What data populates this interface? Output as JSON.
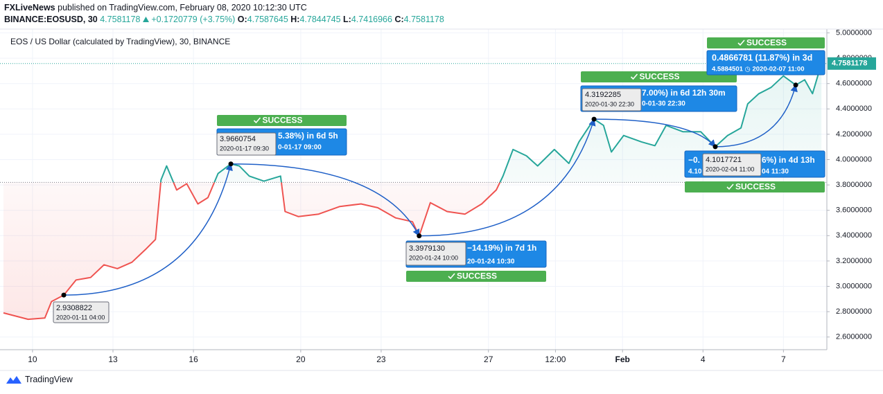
{
  "header": {
    "publisher": "FXLiveNews",
    "published": "published on TradingView.com, February 08, 2020 10:12:30 UTC",
    "symbol": "BINANCE:EOSUSD, 30",
    "last": "4.7581178",
    "change": "+0.1720779 (+3.75%)",
    "ohlc": [
      {
        "label": "O:",
        "value": "4.7587645"
      },
      {
        "label": "H:",
        "value": "4.7844745"
      },
      {
        "label": "L:",
        "value": "4.7416966"
      },
      {
        "label": "C:",
        "value": "4.7581178"
      }
    ]
  },
  "chart_data": {
    "type": "line",
    "x": [
      "2020-01-08 22:00",
      "2020-01-09 20:00",
      "2020-01-10 11:00",
      "2020-01-10 17:00",
      "2020-01-11 04:00",
      "2020-01-11 15:00",
      "2020-01-12 04:00",
      "2020-01-12 16:00",
      "2020-01-13 04:00",
      "2020-01-13 17:00",
      "2020-01-14 05:00",
      "2020-01-14 14:00",
      "2020-01-14 19:00",
      "2020-01-15 00:00",
      "2020-01-15 09:00",
      "2020-01-15 18:00",
      "2020-01-16 04:00",
      "2020-01-16 13:00",
      "2020-01-16 22:00",
      "2020-01-17 09:30",
      "2020-01-17 17:00",
      "2020-01-18 02:00",
      "2020-01-18 15:00",
      "2020-01-19 06:00",
      "2020-01-19 10:00",
      "2020-01-19 22:00",
      "2020-01-20 16:00",
      "2020-01-21 11:00",
      "2020-01-22 06:00",
      "2020-01-22 21:00",
      "2020-01-23 13:00",
      "2020-01-24 04:00",
      "2020-01-24 10:00",
      "2020-01-24 20:00",
      "2020-01-25 11:00",
      "2020-01-26 03:00",
      "2020-01-26 18:00",
      "2020-01-27 07:00",
      "2020-01-27 13:00",
      "2020-01-27 22:00",
      "2020-01-28 10:00",
      "2020-01-28 20:00",
      "2020-01-29 11:00",
      "2020-01-30 00:00",
      "2020-01-30 09:00",
      "2020-01-30 22:30",
      "2020-01-31 07:00",
      "2020-01-31 14:00",
      "2020-02-01 01:00",
      "2020-02-01 17:00",
      "2020-02-02 05:00",
      "2020-02-02 15:00",
      "2020-02-03 06:00",
      "2020-02-03 22:00",
      "2020-02-04 11:00",
      "2020-02-04 22:00",
      "2020-02-05 10:00",
      "2020-02-05 16:00",
      "2020-02-06 02:00",
      "2020-02-06 13:00",
      "2020-02-07 00:00",
      "2020-02-07 11:00",
      "2020-02-07 19:00",
      "2020-02-08 02:00",
      "2020-02-08 10:00"
    ],
    "series": [
      {
        "name": "EOS / US Dollar (calculated by TradingView), 30, BINANCE",
        "values": [
          2.79,
          2.74,
          2.75,
          2.88,
          2.9308822,
          3.05,
          3.07,
          3.17,
          3.14,
          3.19,
          3.29,
          3.37,
          3.84,
          3.95,
          3.76,
          3.81,
          3.65,
          3.7,
          3.89,
          3.9660754,
          3.95,
          3.87,
          3.83,
          3.87,
          3.59,
          3.55,
          3.57,
          3.63,
          3.65,
          3.62,
          3.54,
          3.51,
          3.397913,
          3.66,
          3.59,
          3.57,
          3.65,
          3.76,
          3.87,
          4.08,
          4.03,
          3.95,
          4.08,
          3.97,
          4.14,
          4.3192285,
          4.27,
          4.06,
          4.19,
          4.14,
          4.11,
          4.27,
          4.22,
          4.22,
          4.1017721,
          4.19,
          4.25,
          4.44,
          4.52,
          4.57,
          4.66,
          4.5884501,
          4.63,
          4.52,
          4.7581178
        ]
      }
    ],
    "colors": {
      "up": "#26a69a",
      "down": "#ef5350"
    },
    "baseline": 3.82,
    "xlim": [
      "2020-01-08 22:00",
      "2020-02-08 13:00"
    ],
    "xticks": [
      {
        "value": "2020-01-10 00:00",
        "label": "10"
      },
      {
        "value": "2020-01-13 00:00",
        "label": "13"
      },
      {
        "value": "2020-01-16 00:00",
        "label": "16"
      },
      {
        "value": "2020-01-20 00:00",
        "label": "20"
      },
      {
        "value": "2020-01-23 00:00",
        "label": "23"
      },
      {
        "value": "2020-01-27 00:00",
        "label": "27"
      },
      {
        "value": "2020-01-29 12:00",
        "label": "12:00"
      },
      {
        "value": "2020-02-01 00:00",
        "label": "Feb"
      },
      {
        "value": "2020-02-04 00:00",
        "label": "4"
      },
      {
        "value": "2020-02-07 00:00",
        "label": "7"
      }
    ],
    "ylim": [
      2.5,
      5.03
    ],
    "yticks": [
      {
        "value": 2.6,
        "label": "2.6000000"
      },
      {
        "value": 2.8,
        "label": "2.8000000"
      },
      {
        "value": 3,
        "label": "3.0000000"
      },
      {
        "value": 3.2,
        "label": "3.2000000"
      },
      {
        "value": 3.4,
        "label": "3.4000000"
      },
      {
        "value": 3.6,
        "label": "3.6000000"
      },
      {
        "value": 3.8,
        "label": "3.8000000"
      },
      {
        "value": 4,
        "label": "4.0000000"
      },
      {
        "value": 4.2,
        "label": "4.2000000"
      },
      {
        "value": 4.4,
        "label": "4.4000000"
      },
      {
        "value": 4.6,
        "label": "4.6000000"
      },
      {
        "value": 4.8,
        "label": "4.8000000"
      },
      {
        "value": 5,
        "label": "5.0000000"
      }
    ],
    "grid": true,
    "points": [
      {
        "price": "2.9308822",
        "date": "2020-01-11 04:00"
      },
      {
        "price": "3.9660754",
        "date": "2020-01-17 09:30"
      },
      {
        "price": "3.3979130",
        "date": "2020-01-24 10:00"
      },
      {
        "price": "4.3192285",
        "date": "2020-01-30 22:30"
      },
      {
        "price": "4.1017721",
        "date": "2020-02-04 11:00"
      }
    ],
    "forecasts": [
      {
        "status": "SUCCESS",
        "lines": [
          "5.38%) in 6d 5h",
          "0-01-17  09:00"
        ]
      },
      {
        "status": "SUCCESS",
        "lines": [
          "−14.19%) in 7d 1h",
          "20-01-24  10:30"
        ]
      },
      {
        "status": "SUCCESS",
        "lines": [
          "7.00%) in 6d 12h 30m",
          "0-01-30  22:30"
        ]
      },
      {
        "status": "SUCCESS",
        "lines": [
          "−0.",
          "6%) in 4d 13h",
          "4.10",
          "04  11:30"
        ]
      },
      {
        "status": "SUCCESS",
        "lines": [
          "0.4866781 (11.87%) in 3d",
          "4.5884501 ◷ 2020-02-07  11:00"
        ]
      }
    ]
  },
  "footer": {
    "brand": "TradingView"
  }
}
